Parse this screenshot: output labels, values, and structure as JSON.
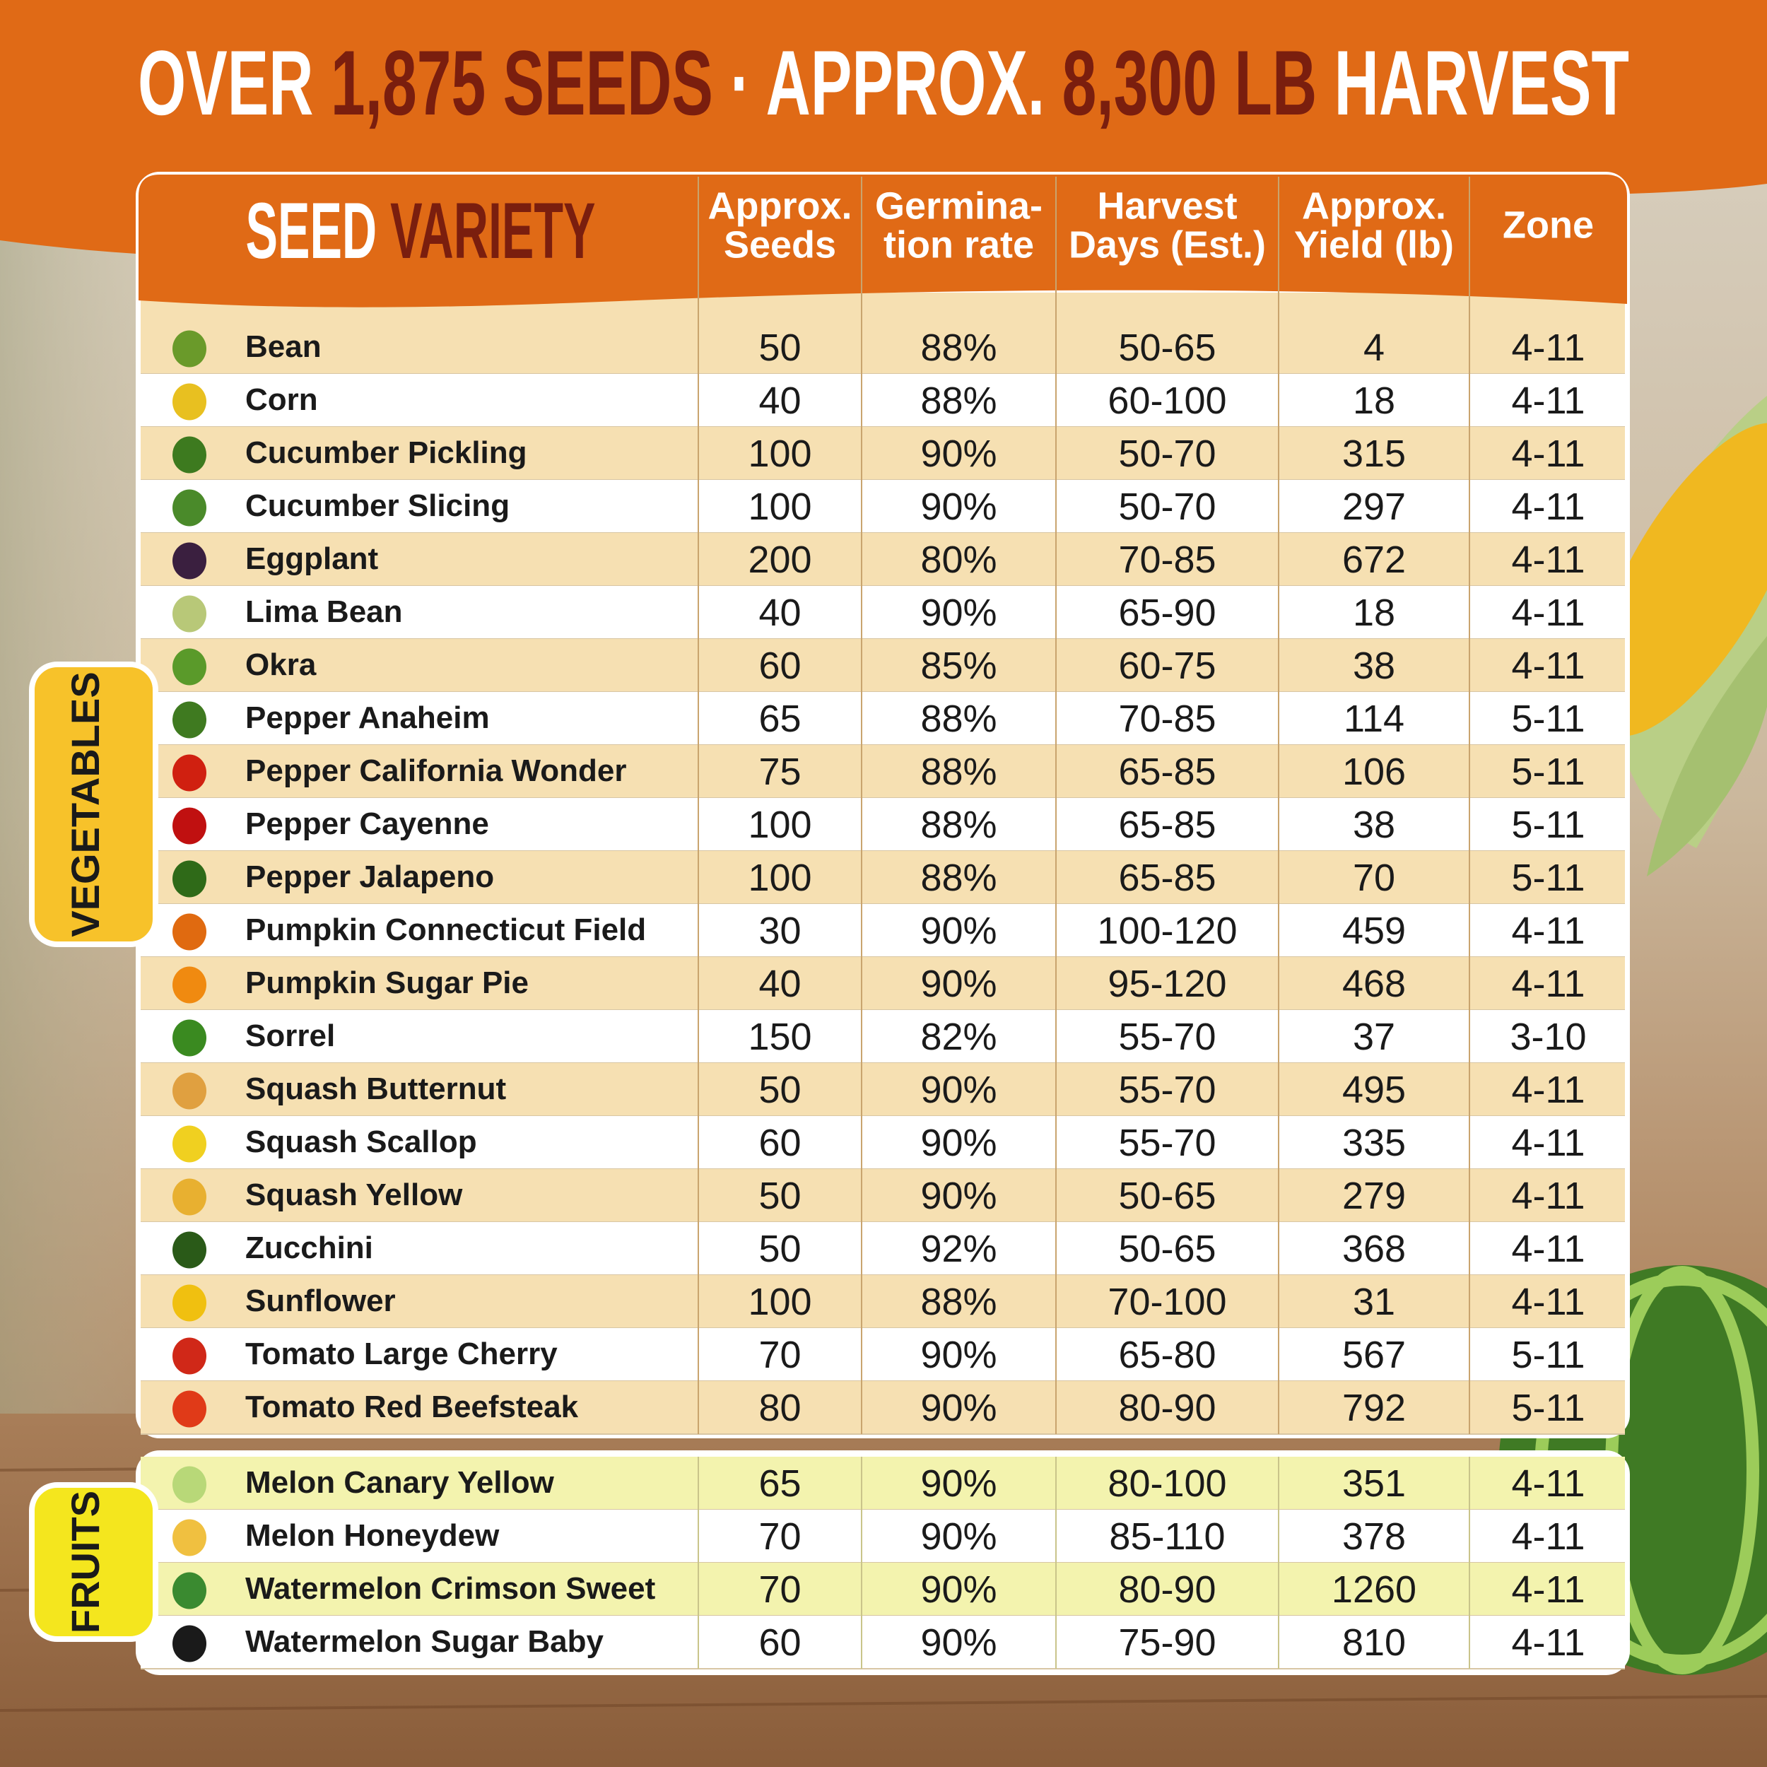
{
  "title": [
    "OVER",
    "1,875 SEEDS",
    "·",
    "APPROX.",
    "8,300 LB",
    "HARVEST"
  ],
  "table": {
    "header": {
      "name": [
        "SEED",
        "VARIETY"
      ],
      "columns": [
        [
          "Approx.",
          "Seeds"
        ],
        [
          "Germina-",
          "tion rate"
        ],
        [
          "Harvest",
          "Days (Est.)"
        ],
        [
          "Approx.",
          "Yield (lb)"
        ],
        [
          "Zone"
        ]
      ]
    },
    "groups": [
      {
        "label": "VEGETABLES",
        "rows": [
          [
            "Bean",
            50,
            "88%",
            "50-65",
            4,
            "4-11"
          ],
          [
            "Corn",
            40,
            "88%",
            "60-100",
            18,
            "4-11"
          ],
          [
            "Cucumber Pickling",
            100,
            "90%",
            "50-70",
            315,
            "4-11"
          ],
          [
            "Cucumber Slicing",
            100,
            "90%",
            "50-70",
            297,
            "4-11"
          ],
          [
            "Eggplant",
            200,
            "80%",
            "70-85",
            672,
            "4-11"
          ],
          [
            "Lima Bean",
            40,
            "90%",
            "65-90",
            18,
            "4-11"
          ],
          [
            "Okra",
            60,
            "85%",
            "60-75",
            38,
            "4-11"
          ],
          [
            "Pepper Anaheim",
            65,
            "88%",
            "70-85",
            114,
            "5-11"
          ],
          [
            "Pepper California Wonder",
            75,
            "88%",
            "65-85",
            106,
            "5-11"
          ],
          [
            "Pepper Cayenne",
            100,
            "88%",
            "65-85",
            38,
            "5-11"
          ],
          [
            "Pepper Jalapeno",
            100,
            "88%",
            "65-85",
            70,
            "5-11"
          ],
          [
            "Pumpkin Connecticut Field",
            30,
            "90%",
            "100-120",
            459,
            "4-11"
          ],
          [
            "Pumpkin Sugar Pie",
            40,
            "90%",
            "95-120",
            468,
            "4-11"
          ],
          [
            "Sorrel",
            150,
            "82%",
            "55-70",
            37,
            "3-10"
          ],
          [
            "Squash Butternut",
            50,
            "90%",
            "55-70",
            495,
            "4-11"
          ],
          [
            "Squash Scallop",
            60,
            "90%",
            "55-70",
            335,
            "4-11"
          ],
          [
            "Squash Yellow",
            50,
            "90%",
            "50-65",
            279,
            "4-11"
          ],
          [
            "Zucchini",
            50,
            "92%",
            "50-65",
            368,
            "4-11"
          ],
          [
            "Sunflower",
            100,
            "88%",
            "70-100",
            31,
            "4-11"
          ],
          [
            "Tomato Large Cherry",
            70,
            "90%",
            "65-80",
            567,
            "5-11"
          ],
          [
            "Tomato Red Beefsteak",
            80,
            "90%",
            "80-90",
            792,
            "5-11"
          ]
        ]
      },
      {
        "label": "FRUITS",
        "rows": [
          [
            "Melon Canary Yellow",
            65,
            "90%",
            "80-100",
            351,
            "4-11"
          ],
          [
            "Melon Honeydew",
            70,
            "90%",
            "85-110",
            378,
            "4-11"
          ],
          [
            "Watermelon Crimson Sweet",
            70,
            "90%",
            "80-90",
            1260,
            "4-11"
          ],
          [
            "Watermelon Sugar Baby",
            60,
            "90%",
            "75-90",
            810,
            "4-11"
          ]
        ]
      }
    ]
  }
}
